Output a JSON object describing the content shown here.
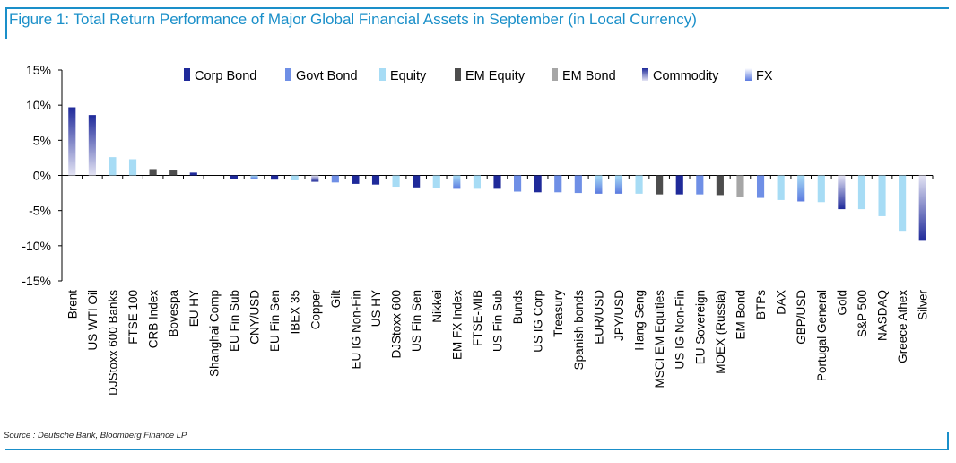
{
  "figure": {
    "title": "Figure 1: Total Return Performance of Major Global Financial Assets in September (in Local Currency)",
    "source": "Source : Deutsche Bank, Bloomberg Finance LP",
    "colors": {
      "accent": "#1a8fc9"
    }
  },
  "chart_data": {
    "type": "bar",
    "ylim": [
      -15,
      15
    ],
    "yticks": [
      15,
      10,
      5,
      0,
      -5,
      -10,
      -15
    ],
    "ytick_labels": [
      "15%",
      "10%",
      "5%",
      "0%",
      "-5%",
      "-10%",
      "-15%"
    ],
    "grid": false,
    "legend_position": "top",
    "legend": [
      {
        "name": "Corp Bond",
        "color": "#1f2a9a"
      },
      {
        "name": "Govt Bond",
        "color": "#6f8fe6"
      },
      {
        "name": "Equity",
        "color": "#a7dcf5"
      },
      {
        "name": "EM Equity",
        "color": "#4d4d4d"
      },
      {
        "name": "EM Bond",
        "color": "#a6a6a6"
      },
      {
        "name": "Commodity",
        "color": "gradient-navy"
      },
      {
        "name": "FX",
        "color": "gradient-lightblue"
      }
    ],
    "categories": [
      "Brent",
      "US WTI Oil",
      "DJStoxx 600 Banks",
      "FTSE 100",
      "CRB Index",
      "Bovespa",
      "EU HY",
      "Shanghai Comp",
      "EU Fin Sub",
      "CNY/USD",
      "EU Fin Sen",
      "IBEX 35",
      "Copper",
      "Gilt",
      "EU IG Non-Fin",
      "US HY",
      "DJStoxx 600",
      "US Fin Sen",
      "Nikkei",
      "EM FX Index",
      "FTSE-MIB",
      "US Fin Sub",
      "Bunds",
      "US IG Corp",
      "Treasury",
      "Spanish bonds",
      "EUR/USD",
      "JPY/USD",
      "Hang Seng",
      "MSCI EM Equities",
      "US IG Non-Fin",
      "EU Sovereign",
      "MOEX (Russia)",
      "EM Bond",
      "BTPs",
      "DAX",
      "GBP/USD",
      "Portugal General",
      "Gold",
      "S&P 500",
      "NASDAQ",
      "Greece Athex",
      "Silver"
    ],
    "values": [
      9.7,
      8.6,
      2.6,
      2.3,
      0.9,
      0.7,
      0.4,
      0.0,
      -0.5,
      -0.5,
      -0.6,
      -0.7,
      -0.9,
      -1.0,
      -1.2,
      -1.3,
      -1.6,
      -1.7,
      -1.8,
      -1.9,
      -1.9,
      -1.9,
      -2.3,
      -2.4,
      -2.4,
      -2.5,
      -2.6,
      -2.6,
      -2.6,
      -2.7,
      -2.7,
      -2.7,
      -2.8,
      -3.0,
      -3.2,
      -3.5,
      -3.7,
      -3.8,
      -4.8,
      -4.8,
      -5.8,
      -8.0,
      -9.3
    ],
    "groups": [
      "Commodity",
      "Commodity",
      "Equity",
      "Equity",
      "EM Equity",
      "EM Equity",
      "Corp Bond",
      "Equity",
      "Corp Bond",
      "FX",
      "Corp Bond",
      "Equity",
      "Commodity",
      "Govt Bond",
      "Corp Bond",
      "Corp Bond",
      "Equity",
      "Corp Bond",
      "Equity",
      "FX",
      "Equity",
      "Corp Bond",
      "Govt Bond",
      "Corp Bond",
      "Govt Bond",
      "Govt Bond",
      "FX",
      "FX",
      "Equity",
      "EM Equity",
      "Corp Bond",
      "Govt Bond",
      "EM Equity",
      "EM Bond",
      "Govt Bond",
      "Equity",
      "FX",
      "Equity",
      "Commodity",
      "Equity",
      "Equity",
      "Equity",
      "Commodity"
    ]
  }
}
